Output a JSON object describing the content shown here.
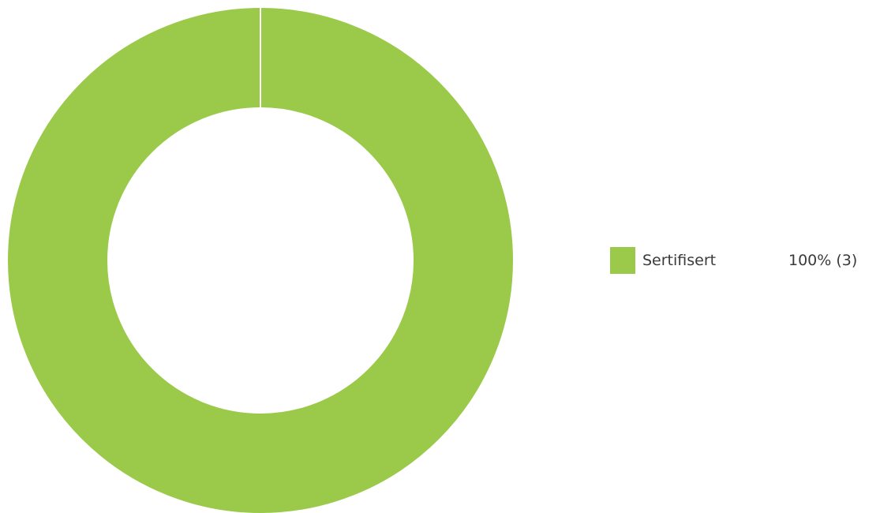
{
  "chart_data": {
    "type": "pie",
    "donut": true,
    "title": "",
    "slices": [
      {
        "label": "Sertifisert",
        "value": 3,
        "percent": 100,
        "value_text": "100% (3)",
        "color": "#9bca4a"
      }
    ],
    "legend_position": "right"
  }
}
